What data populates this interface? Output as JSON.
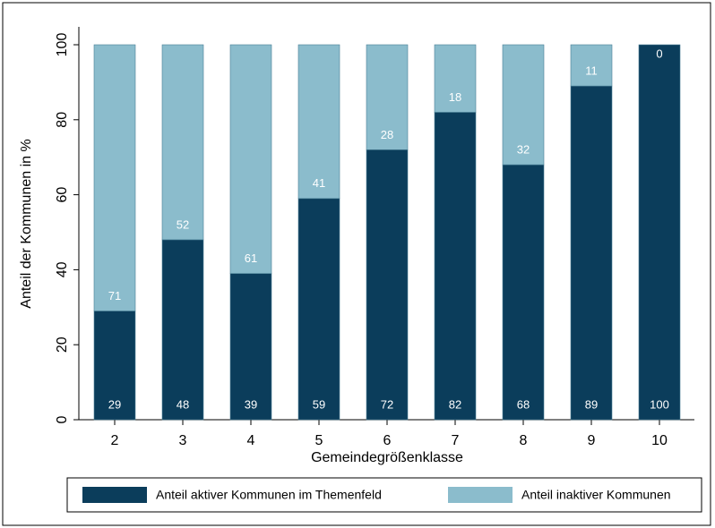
{
  "chart_data": {
    "type": "stacked_bar",
    "x_label": "Gemeindegrößenklasse",
    "y_label": "Anteil der Kommunen in %",
    "categories": [
      "2",
      "3",
      "4",
      "5",
      "6",
      "7",
      "8",
      "9",
      "10"
    ],
    "series": [
      {
        "name": "Anteil aktiver Kommunen im Themenfeld",
        "color": "#0b3d5b",
        "values": [
          29,
          48,
          39,
          59,
          72,
          82,
          68,
          89,
          100
        ]
      },
      {
        "name": "Anteil inaktiver Kommunen",
        "color": "#8bbccc",
        "values": [
          71,
          52,
          61,
          41,
          28,
          18,
          32,
          11,
          0
        ]
      }
    ],
    "ylim": [
      0,
      100
    ],
    "yticks": [
      0,
      20,
      40,
      60,
      80,
      100
    ],
    "legend": "bottom"
  }
}
